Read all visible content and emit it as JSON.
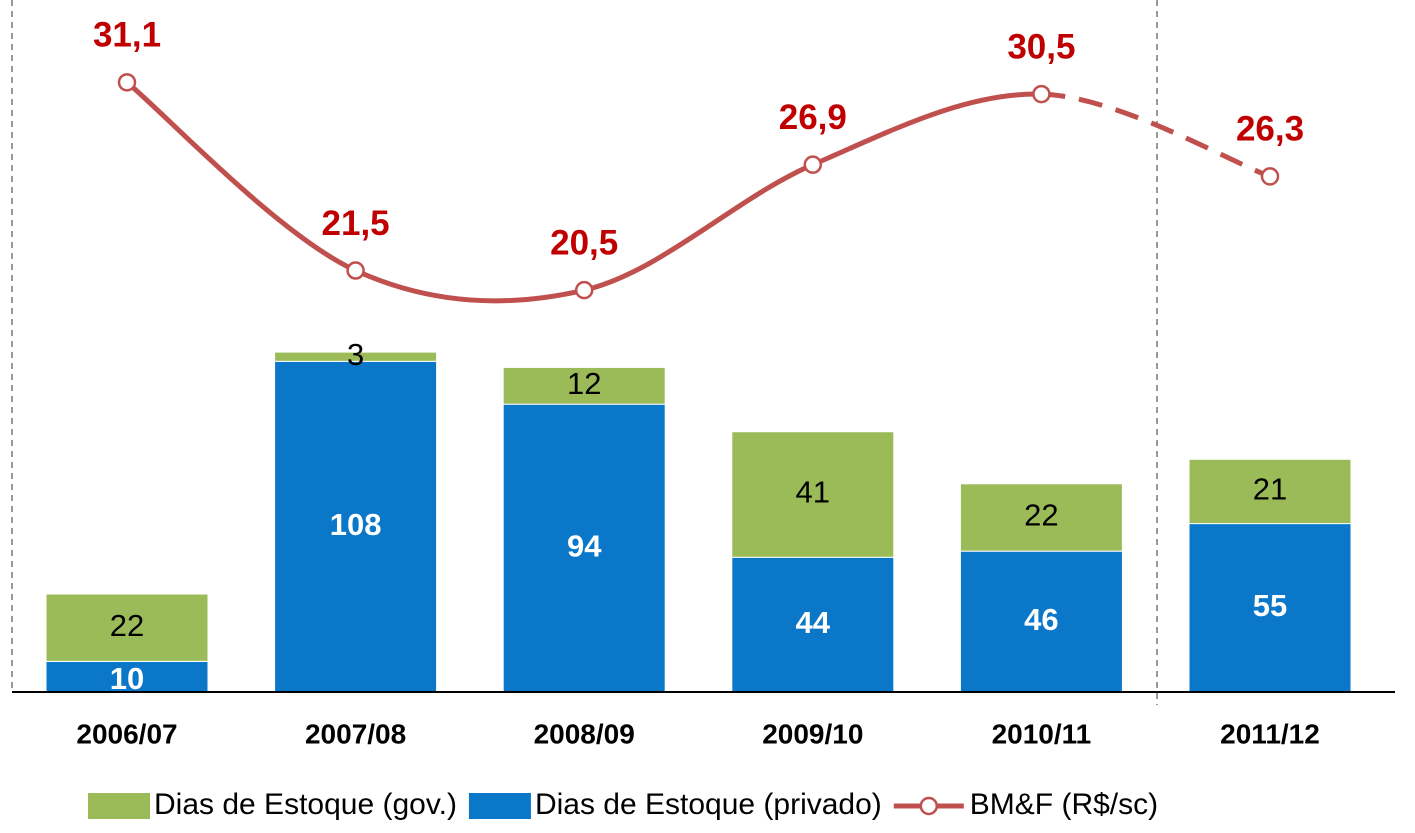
{
  "chart_data": {
    "type": "bar_line",
    "categories": [
      "2006/07",
      "2007/08",
      "2008/09",
      "2009/10",
      "2010/11",
      "2011/12"
    ],
    "series": [
      {
        "name": "Dias de Estoque (gov.)",
        "color": "#9bbb59",
        "type": "bar",
        "values": [
          22,
          3,
          12,
          41,
          22,
          21
        ]
      },
      {
        "name": "Dias de Estoque (privado)",
        "color": "#0a77c9",
        "type": "bar",
        "values": [
          10,
          108,
          94,
          44,
          46,
          55
        ]
      },
      {
        "name": "BM&F (R$/sc)",
        "color": "#c0504d",
        "type": "line",
        "axis": "y2",
        "values": [
          31.1,
          21.5,
          20.5,
          26.9,
          30.5,
          26.3
        ],
        "value_labels": [
          "31,1",
          "21,5",
          "20,5",
          "26,9",
          "30,5",
          "26,3"
        ]
      }
    ],
    "ylim": [
      0,
      226
    ],
    "y2lim": [
      0,
      35.3
    ],
    "legend": "bottom"
  }
}
